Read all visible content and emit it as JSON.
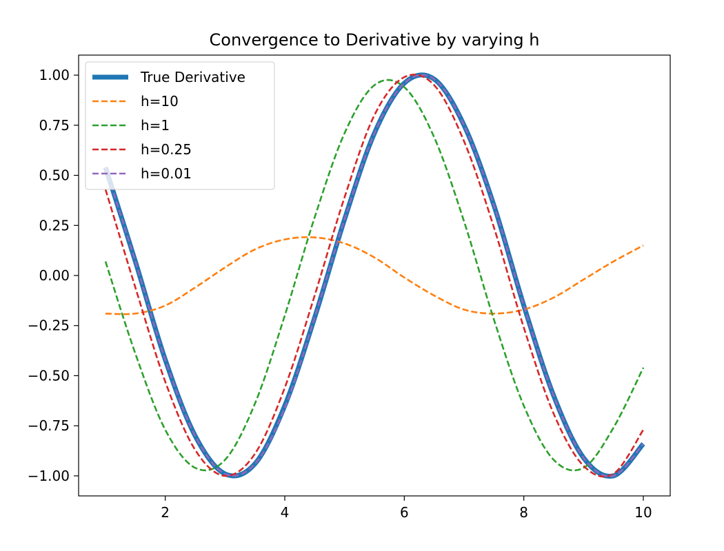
{
  "chart_data": {
    "type": "line",
    "title": "Convergence to Derivative by varying h",
    "xlabel": "",
    "ylabel": "",
    "xlim": [
      0.55,
      10.45
    ],
    "ylim": [
      -1.1,
      1.1
    ],
    "xticks": [
      {
        "value": 2,
        "label": "2"
      },
      {
        "value": 4,
        "label": "4"
      },
      {
        "value": 6,
        "label": "6"
      },
      {
        "value": 8,
        "label": "8"
      },
      {
        "value": 10,
        "label": "10"
      }
    ],
    "yticks": [
      {
        "value": 1.0,
        "label": "1.00"
      },
      {
        "value": 0.75,
        "label": "0.75"
      },
      {
        "value": 0.5,
        "label": "0.50"
      },
      {
        "value": 0.25,
        "label": "0.25"
      },
      {
        "value": 0.0,
        "label": "0.00"
      },
      {
        "value": -0.25,
        "label": "−0.25"
      },
      {
        "value": -0.5,
        "label": "−0.50"
      },
      {
        "value": -0.75,
        "label": "−0.75"
      },
      {
        "value": -1.0,
        "label": "−1.00"
      }
    ],
    "grid": false,
    "legend_position": "upper-left",
    "series": [
      {
        "name": "True Derivative",
        "color": "#1f77b4",
        "style": "solid",
        "x": [
          1.0,
          1.5,
          2.0,
          2.5,
          3.0,
          3.5,
          4.0,
          4.5,
          5.0,
          5.5,
          6.0,
          6.5,
          7.0,
          7.5,
          8.0,
          8.5,
          9.0,
          9.5,
          10.0
        ],
        "y": [
          0.54,
          0.07,
          -0.42,
          -0.8,
          -0.99,
          -0.94,
          -0.65,
          -0.21,
          0.28,
          0.71,
          0.96,
          0.98,
          0.75,
          0.35,
          -0.15,
          -0.6,
          -0.91,
          -1.0,
          -0.84
        ]
      },
      {
        "name": "h=10",
        "color": "#ff7f0e",
        "style": "dashed",
        "x": [
          1.0,
          1.5,
          2.0,
          2.5,
          3.0,
          3.5,
          4.0,
          4.5,
          5.0,
          5.5,
          6.0,
          6.5,
          7.0,
          7.5,
          8.0,
          8.5,
          9.0,
          9.5,
          10.0
        ],
        "y": [
          -0.19,
          -0.19,
          -0.15,
          -0.06,
          0.04,
          0.13,
          0.18,
          0.19,
          0.16,
          0.09,
          -0.01,
          -0.1,
          -0.17,
          -0.19,
          -0.17,
          -0.11,
          -0.02,
          0.07,
          0.15
        ]
      },
      {
        "name": "h=1",
        "color": "#2ca02c",
        "style": "dashed",
        "x": [
          1.0,
          1.5,
          2.0,
          2.5,
          3.0,
          3.5,
          4.0,
          4.5,
          5.0,
          5.5,
          6.0,
          6.5,
          7.0,
          7.5,
          8.0,
          8.5,
          9.0,
          9.5,
          10.0
        ],
        "y": [
          0.07,
          -0.39,
          -0.77,
          -0.96,
          -0.92,
          -0.64,
          -0.2,
          0.29,
          0.71,
          0.95,
          0.94,
          0.69,
          0.27,
          -0.22,
          -0.65,
          -0.92,
          -0.96,
          -0.76,
          -0.46
        ]
      },
      {
        "name": "h=0.25",
        "color": "#d62728",
        "style": "dashed",
        "x": [
          1.0,
          1.5,
          2.0,
          2.5,
          3.0,
          3.5,
          4.0,
          4.5,
          5.0,
          5.5,
          6.0,
          6.5,
          7.0,
          7.5,
          8.0,
          8.5,
          9.0,
          9.5,
          10.0
        ],
        "y": [
          0.43,
          -0.06,
          -0.53,
          -0.87,
          -1.0,
          -0.89,
          -0.56,
          -0.1,
          0.39,
          0.8,
          0.99,
          0.95,
          0.67,
          0.24,
          -0.26,
          -0.69,
          -0.95,
          -0.99,
          -0.77
        ]
      },
      {
        "name": "h=0.01",
        "color": "#9467bd",
        "style": "dashed",
        "x": [
          1.0,
          1.5,
          2.0,
          2.5,
          3.0,
          3.5,
          4.0,
          4.5,
          5.0,
          5.5,
          6.0,
          6.5,
          7.0,
          7.5,
          8.0,
          8.5,
          9.0,
          9.5,
          10.0
        ],
        "y": [
          0.54,
          0.07,
          -0.42,
          -0.8,
          -0.99,
          -0.94,
          -0.66,
          -0.21,
          0.28,
          0.71,
          0.96,
          0.98,
          0.75,
          0.35,
          -0.15,
          -0.6,
          -0.91,
          -1.0,
          -0.84
        ]
      }
    ]
  }
}
